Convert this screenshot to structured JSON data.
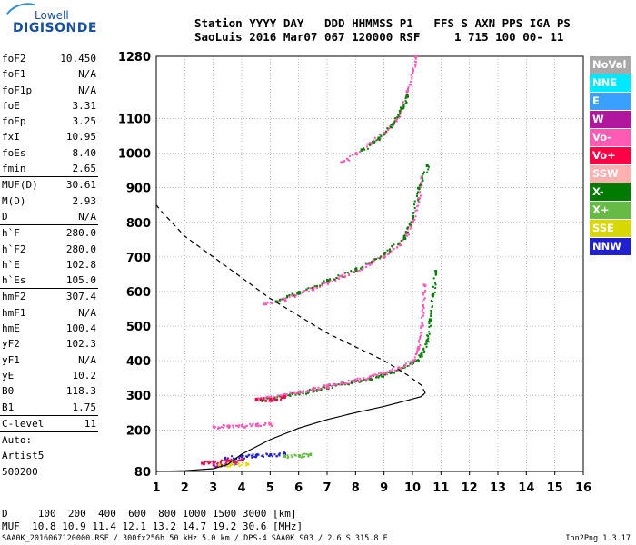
{
  "logo": {
    "line1": "Lowell",
    "line2": "DIGISONDE"
  },
  "header": {
    "line1": "Station YYYY DAY   DDD HHMMSS P1   FFS S AXN PPS IGA PS",
    "line2": "SaoLuis 2016 Mar07 067 120000 RSF     1 715 100 00- 11"
  },
  "params": {
    "group1": [
      {
        "k": "foF2",
        "v": "10.450"
      },
      {
        "k": "foF1",
        "v": "N/A"
      },
      {
        "k": "foF1p",
        "v": "N/A"
      },
      {
        "k": "foE",
        "v": "3.31"
      },
      {
        "k": "foEp",
        "v": "3.25"
      },
      {
        "k": "fxI",
        "v": "10.95"
      },
      {
        "k": "foEs",
        "v": "8.40"
      },
      {
        "k": "fmin",
        "v": "2.65"
      }
    ],
    "group2": [
      {
        "k": "MUF(D)",
        "v": "30.61"
      },
      {
        "k": "M(D)",
        "v": "2.93"
      },
      {
        "k": "D",
        "v": "N/A"
      }
    ],
    "group3": [
      {
        "k": "h`F",
        "v": "280.0"
      },
      {
        "k": "h`F2",
        "v": "280.0"
      },
      {
        "k": "h`E",
        "v": "102.8"
      },
      {
        "k": "h`Es",
        "v": "105.0"
      }
    ],
    "group4": [
      {
        "k": "hmF2",
        "v": "307.4"
      },
      {
        "k": "hmF1",
        "v": "N/A"
      },
      {
        "k": "hmE",
        "v": "100.4"
      },
      {
        "k": "yF2",
        "v": "102.3"
      },
      {
        "k": "yF1",
        "v": "N/A"
      },
      {
        "k": "yE",
        "v": "10.2"
      },
      {
        "k": "B0",
        "v": "118.3"
      },
      {
        "k": "B1",
        "v": "1.75"
      }
    ],
    "clevel": {
      "k": "C-level",
      "v": "11"
    },
    "auto": [
      "Auto:",
      "Artist5",
      "500200"
    ]
  },
  "legend": [
    {
      "label": "NoVal",
      "color": "#a8a8a8"
    },
    {
      "label": "NNE",
      "color": "#00e8ff"
    },
    {
      "label": "E",
      "color": "#3aa0ff"
    },
    {
      "label": "W",
      "color": "#b0169e"
    },
    {
      "label": "Vo-",
      "color": "#ff5ab4"
    },
    {
      "label": "Vo+",
      "color": "#ff0044"
    },
    {
      "label": "SSW",
      "color": "#ffb0b0"
    },
    {
      "label": "X-",
      "color": "#007a00"
    },
    {
      "label": "X+",
      "color": "#66bb44"
    },
    {
      "label": "SSE",
      "color": "#d8d800"
    },
    {
      "label": "NNW",
      "color": "#2020d0"
    }
  ],
  "muf": {
    "line1": "D     100  200  400  600  800 1000 1500 3000 [km]",
    "line2": "MUF  10.8 10.9 11.4 12.1 13.2 14.7 19.2 30.6 [MHz]"
  },
  "footer": "SAA0K_2016067120000.RSF / 300fx256h 50 kHz 5.0 km / DPS-4 SAA0K 903 / 2.6 S 315.8 E",
  "version": "Ion2Png 1.3.17",
  "chart_data": {
    "type": "scatter",
    "xlim": [
      1,
      16
    ],
    "ylim": [
      80,
      1280
    ],
    "x_ticks": [
      1,
      2,
      3,
      4,
      5,
      6,
      7,
      8,
      9,
      10,
      11,
      12,
      13,
      14,
      15,
      16
    ],
    "y_ticks": [
      80,
      200,
      300,
      400,
      500,
      600,
      700,
      800,
      900,
      1000,
      1100,
      1280
    ],
    "grid": true,
    "series": [
      {
        "color": "#007a00",
        "points": [
          [
            4.6,
            288
          ],
          [
            5,
            292
          ],
          [
            5.5,
            300
          ],
          [
            6,
            308
          ],
          [
            6.5,
            317
          ],
          [
            7,
            325
          ],
          [
            7.5,
            334
          ],
          [
            8,
            343
          ],
          [
            8.5,
            352
          ],
          [
            9,
            362
          ],
          [
            9.5,
            376
          ],
          [
            10,
            395
          ],
          [
            10.3,
            420
          ],
          [
            10.5,
            460
          ],
          [
            10.6,
            520
          ],
          [
            10.7,
            590
          ],
          [
            10.8,
            660
          ]
        ]
      },
      {
        "color": "#ff5ab4",
        "points": [
          [
            4.5,
            290
          ],
          [
            5,
            296
          ],
          [
            5.5,
            303
          ],
          [
            6,
            311
          ],
          [
            6.5,
            320
          ],
          [
            7,
            328
          ],
          [
            7.5,
            337
          ],
          [
            8,
            346
          ],
          [
            8.5,
            355
          ],
          [
            9,
            366
          ],
          [
            9.5,
            381
          ],
          [
            10,
            401
          ],
          [
            10.2,
            440
          ],
          [
            10.3,
            500
          ],
          [
            10.35,
            560
          ],
          [
            10.4,
            620
          ]
        ]
      },
      {
        "color": "#ff5ab4",
        "points": [
          [
            4.8,
            565
          ],
          [
            5.5,
            580
          ],
          [
            6,
            596
          ],
          [
            6.5,
            612
          ],
          [
            7,
            628
          ],
          [
            7.5,
            646
          ],
          [
            8,
            664
          ],
          [
            8.5,
            684
          ],
          [
            9,
            706
          ],
          [
            9.5,
            738
          ],
          [
            9.8,
            770
          ],
          [
            10,
            810
          ],
          [
            10.2,
            870
          ],
          [
            10.3,
            930
          ]
        ]
      },
      {
        "color": "#007a00",
        "points": [
          [
            5.2,
            572
          ],
          [
            6,
            600
          ],
          [
            7,
            632
          ],
          [
            8,
            666
          ],
          [
            9,
            712
          ],
          [
            9.7,
            760
          ],
          [
            10,
            818
          ],
          [
            10.2,
            900
          ],
          [
            10.5,
            965
          ]
        ]
      },
      {
        "color": "#ff5ab4",
        "points": [
          [
            7.5,
            975
          ],
          [
            8,
            1000
          ],
          [
            8.5,
            1030
          ],
          [
            9,
            1060
          ],
          [
            9.4,
            1095
          ],
          [
            9.6,
            1130
          ],
          [
            9.8,
            1180
          ],
          [
            10,
            1240
          ],
          [
            10.1,
            1280
          ]
        ]
      },
      {
        "color": "#007a00",
        "points": [
          [
            8.2,
            1010
          ],
          [
            8.8,
            1045
          ],
          [
            9.3,
            1085
          ],
          [
            9.6,
            1130
          ],
          [
            9.8,
            1170
          ]
        ]
      },
      {
        "color": "#ff5ab4",
        "points": [
          [
            3,
            210
          ],
          [
            3.5,
            212
          ],
          [
            4,
            214
          ],
          [
            4.5,
            216
          ],
          [
            5,
            218
          ]
        ]
      },
      {
        "color": "#ff0044",
        "points": [
          [
            4.5,
            290
          ],
          [
            5,
            290
          ],
          [
            5.5,
            296
          ]
        ]
      },
      {
        "color": "#2020d0",
        "points": [
          [
            3.4,
            120
          ],
          [
            4,
            125
          ],
          [
            4.5,
            128
          ],
          [
            5,
            130
          ],
          [
            5.5,
            132
          ]
        ]
      },
      {
        "color": "#ff0044",
        "points": [
          [
            2.6,
            105
          ],
          [
            3,
            108
          ],
          [
            3.5,
            112
          ],
          [
            4,
            116
          ]
        ]
      },
      {
        "color": "#b0169e",
        "points": [
          [
            3,
            100
          ],
          [
            3.4,
            102
          ],
          [
            3.8,
            104
          ]
        ]
      },
      {
        "color": "#d8d800",
        "points": [
          [
            3.2,
            100
          ],
          [
            3.6,
            101
          ],
          [
            4.2,
            102
          ]
        ]
      },
      {
        "color": "#66bb44",
        "points": [
          [
            5.5,
            125
          ],
          [
            6,
            127
          ],
          [
            6.4,
            130
          ]
        ]
      }
    ],
    "profile_solid": [
      [
        1,
        80
      ],
      [
        2,
        82
      ],
      [
        3,
        88
      ],
      [
        3.5,
        100
      ],
      [
        4,
        130
      ],
      [
        5,
        172
      ],
      [
        6,
        205
      ],
      [
        7,
        230
      ],
      [
        8,
        250
      ],
      [
        9,
        268
      ],
      [
        9.8,
        285
      ],
      [
        10.3,
        296
      ],
      [
        10.45,
        307
      ]
    ],
    "profile_dashed": [
      [
        10.45,
        307
      ],
      [
        10.3,
        330
      ],
      [
        9.8,
        360
      ],
      [
        9,
        400
      ],
      [
        8,
        440
      ],
      [
        7,
        480
      ],
      [
        6,
        530
      ],
      [
        5,
        580
      ],
      [
        4,
        640
      ],
      [
        3,
        700
      ],
      [
        2,
        760
      ],
      [
        1.2,
        830
      ],
      [
        1,
        850
      ]
    ]
  }
}
